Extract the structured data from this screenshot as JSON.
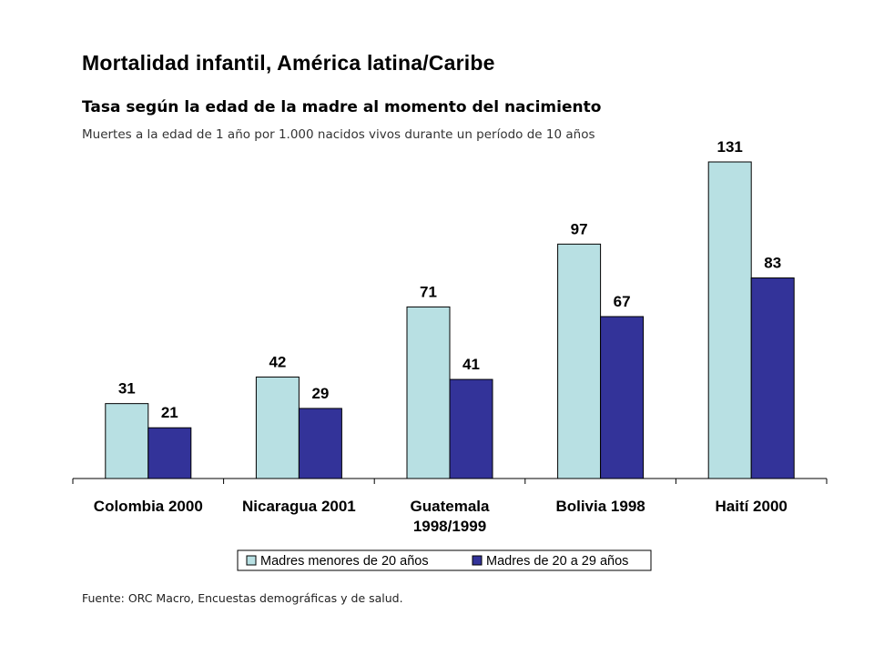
{
  "header": {
    "title": "Mortalidad infantil, América latina/Caribe",
    "subtitle": "Tasa según la edad de la madre al momento del nacimiento",
    "unit_note": "Muertes a la edad de 1 año por 1.000 nacidos vivos durante un período de 10 años"
  },
  "footer": {
    "source": "Fuente: ORC Macro, Encuestas demográficas y de salud."
  },
  "chart_data": {
    "type": "bar",
    "title": "",
    "xlabel": "",
    "ylabel": "",
    "categories": [
      [
        "Colombia 2000"
      ],
      [
        "Nicaragua 2001"
      ],
      [
        "Guatemala",
        "1998/1999"
      ],
      [
        "Bolivia 1998"
      ],
      [
        "Haití 2000"
      ]
    ],
    "series": [
      {
        "name": "Madres menores de 20 años",
        "values": [
          31,
          42,
          71,
          97,
          131
        ],
        "color": "#b8e0e3"
      },
      {
        "name": "Madres de 20 a 29 años",
        "values": [
          21,
          29,
          41,
          67,
          83
        ],
        "color": "#333399"
      }
    ],
    "ylim": [
      0,
      131
    ],
    "grid": false,
    "data_labels": true,
    "legend": "bottom-center"
  }
}
